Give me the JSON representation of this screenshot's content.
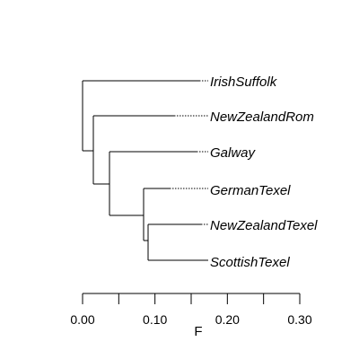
{
  "tree": {
    "tips": [
      {
        "id": "irish",
        "label": "IrishSuffolk"
      },
      {
        "id": "nzrom",
        "label": "NewZealandRom"
      },
      {
        "id": "galway",
        "label": "Galway"
      },
      {
        "id": "gertex",
        "label": "GermanTexel"
      },
      {
        "id": "nztex",
        "label": "NewZealandTexel"
      },
      {
        "id": "scotex",
        "label": "ScottishTexel"
      }
    ],
    "branch_color": "#000000",
    "connector_style": "dotted"
  },
  "axis": {
    "title": "F",
    "range": [
      0,
      0.3
    ],
    "tick_values": [
      0,
      0.05,
      0.1,
      0.15,
      0.2,
      0.25,
      0.3
    ],
    "tick_labels": [
      {
        "value": 0.0,
        "text": "0.00"
      },
      {
        "value": 0.1,
        "text": "0.10"
      },
      {
        "value": 0.2,
        "text": "0.20"
      },
      {
        "value": 0.3,
        "text": "0.30"
      }
    ]
  }
}
